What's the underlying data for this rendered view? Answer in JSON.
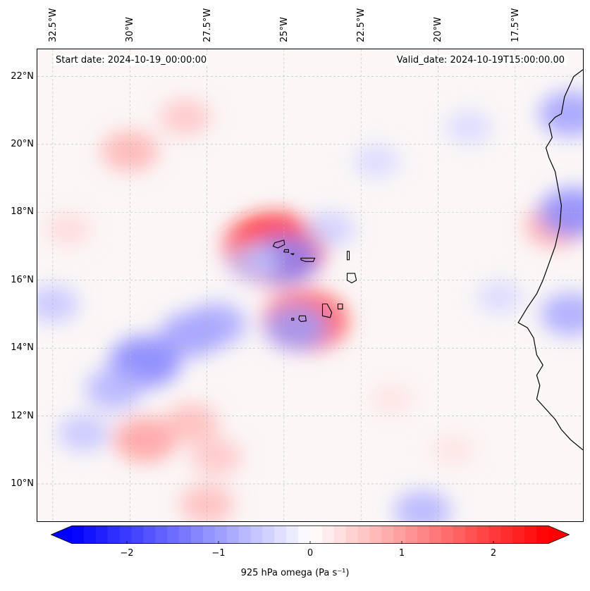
{
  "map": {
    "projection": "lat-lon",
    "lon_range": [
      -33,
      -15.3
    ],
    "lat_range": [
      8.9,
      22.8
    ],
    "lon_ticks": [
      {
        "value": -32.5,
        "label": "32.5°W"
      },
      {
        "value": -30,
        "label": "30°W"
      },
      {
        "value": -27.5,
        "label": "27.5°W"
      },
      {
        "value": -25,
        "label": "25°W"
      },
      {
        "value": -22.5,
        "label": "22.5°W"
      },
      {
        "value": -20,
        "label": "20°W"
      },
      {
        "value": -17.5,
        "label": "17.5°W"
      }
    ],
    "lat_ticks": [
      {
        "value": 22,
        "label": "22°N"
      },
      {
        "value": 20,
        "label": "20°N"
      },
      {
        "value": 18,
        "label": "18°N"
      },
      {
        "value": 16,
        "label": "16°N"
      },
      {
        "value": 14,
        "label": "14°N"
      },
      {
        "value": 12,
        "label": "12°N"
      },
      {
        "value": 10,
        "label": "10°N"
      }
    ],
    "gridlines": true,
    "start_date": "Start date: 2024-10-19_00:00:00",
    "valid_date": "Valid_date: 2024-10-19T15:00:00.00"
  },
  "colorbar": {
    "label": "925 hPa omega (Pa s⁻¹)",
    "vmin": -2.6,
    "vmax": 2.6,
    "extend": "both",
    "ticks": [
      {
        "value": -2,
        "label": "−2"
      },
      {
        "value": -1,
        "label": "−1"
      },
      {
        "value": 0,
        "label": "0"
      },
      {
        "value": 1,
        "label": "1"
      },
      {
        "value": 2,
        "label": "2"
      }
    ],
    "colormap": "bwr",
    "color_low": "#0000ff",
    "color_mid": "#ffffff",
    "color_high": "#ff0000"
  },
  "field_features": [
    {
      "lon": -25.3,
      "lat": 16.9,
      "value": 2.4
    },
    {
      "lon": -25.0,
      "lat": 16.6,
      "value": -1.2
    },
    {
      "lon": -24.3,
      "lat": 14.8,
      "value": 1.8
    },
    {
      "lon": -24.6,
      "lat": 14.6,
      "value": -1.0
    },
    {
      "lon": -29.5,
      "lat": 13.6,
      "value": -1.3
    },
    {
      "lon": -28.0,
      "lat": 14.4,
      "value": -1.0
    },
    {
      "lon": -27.2,
      "lat": 14.7,
      "value": -0.9
    },
    {
      "lon": -30.5,
      "lat": 12.8,
      "value": -0.8
    },
    {
      "lon": -29.5,
      "lat": 11.3,
      "value": 1.0
    },
    {
      "lon": -28.0,
      "lat": 11.8,
      "value": 0.7
    },
    {
      "lon": -27.2,
      "lat": 10.8,
      "value": 0.6
    },
    {
      "lon": -31.5,
      "lat": 11.5,
      "value": -0.6
    },
    {
      "lon": -30.0,
      "lat": 19.8,
      "value": 0.8
    },
    {
      "lon": -28.2,
      "lat": 20.8,
      "value": 0.6
    },
    {
      "lon": -16.2,
      "lat": 17.6,
      "value": 0.9
    },
    {
      "lon": -15.6,
      "lat": 18.0,
      "value": -1.2
    },
    {
      "lon": -15.7,
      "lat": 20.9,
      "value": -1.0
    },
    {
      "lon": -15.7,
      "lat": 15.0,
      "value": -0.9
    },
    {
      "lon": -20.5,
      "lat": 9.2,
      "value": -0.8
    },
    {
      "lon": -27.5,
      "lat": 9.4,
      "value": 0.7
    },
    {
      "lon": -23.5,
      "lat": 17.5,
      "value": -0.5
    },
    {
      "lon": -22.0,
      "lat": 19.5,
      "value": -0.4
    },
    {
      "lon": -19.0,
      "lat": 20.5,
      "value": -0.4
    },
    {
      "lon": -18.0,
      "lat": 15.5,
      "value": -0.4
    },
    {
      "lon": -26.0,
      "lat": 16.5,
      "value": -0.6
    },
    {
      "lon": -32.5,
      "lat": 15.3,
      "value": -0.6
    },
    {
      "lon": -32.0,
      "lat": 17.5,
      "value": 0.4
    },
    {
      "lon": -21.5,
      "lat": 12.5,
      "value": 0.3
    },
    {
      "lon": -19.5,
      "lat": 11.0,
      "value": 0.3
    }
  ],
  "coastlines": [
    {
      "name": "west-africa",
      "points": [
        [
          -15.3,
          22.2
        ],
        [
          -15.6,
          22.0
        ],
        [
          -15.9,
          21.4
        ],
        [
          -16.0,
          20.9
        ],
        [
          -16.2,
          20.8
        ],
        [
          -16.4,
          20.6
        ],
        [
          -16.3,
          20.2
        ],
        [
          -16.5,
          19.9
        ],
        [
          -16.4,
          19.6
        ],
        [
          -16.2,
          19.2
        ],
        [
          -16.1,
          18.7
        ],
        [
          -16.0,
          18.2
        ],
        [
          -16.05,
          17.6
        ],
        [
          -16.2,
          17.0
        ],
        [
          -16.4,
          16.5
        ],
        [
          -16.6,
          16.0
        ],
        [
          -16.8,
          15.6
        ],
        [
          -17.1,
          15.2
        ],
        [
          -17.4,
          14.75
        ],
        [
          -17.1,
          14.6
        ],
        [
          -16.9,
          14.3
        ],
        [
          -16.8,
          13.8
        ],
        [
          -16.6,
          13.5
        ],
        [
          -16.8,
          13.2
        ],
        [
          -16.7,
          12.9
        ],
        [
          -16.8,
          12.5
        ],
        [
          -16.5,
          12.2
        ],
        [
          -16.2,
          11.9
        ],
        [
          -16.0,
          11.6
        ],
        [
          -15.7,
          11.3
        ],
        [
          -15.3,
          11.0
        ]
      ]
    }
  ],
  "islands": [
    {
      "name": "santo-antao",
      "points": [
        [
          -25.3,
          17.1
        ],
        [
          -25.0,
          17.18
        ],
        [
          -24.98,
          17.05
        ],
        [
          -25.2,
          16.95
        ],
        [
          -25.35,
          17.0
        ]
      ]
    },
    {
      "name": "sao-vicente",
      "points": [
        [
          -24.98,
          16.9
        ],
        [
          -24.85,
          16.9
        ],
        [
          -24.85,
          16.82
        ],
        [
          -25.0,
          16.83
        ]
      ]
    },
    {
      "name": "santa-luzia",
      "points": [
        [
          -24.78,
          16.78
        ],
        [
          -24.68,
          16.78
        ],
        [
          -24.7,
          16.75
        ]
      ]
    },
    {
      "name": "sao-nicolau",
      "points": [
        [
          -24.45,
          16.65
        ],
        [
          -24.0,
          16.65
        ],
        [
          -24.05,
          16.55
        ],
        [
          -24.3,
          16.55
        ],
        [
          -24.45,
          16.6
        ]
      ]
    },
    {
      "name": "sal",
      "points": [
        [
          -22.95,
          16.85
        ],
        [
          -22.88,
          16.85
        ],
        [
          -22.88,
          16.6
        ],
        [
          -22.95,
          16.6
        ]
      ]
    },
    {
      "name": "boa-vista",
      "points": [
        [
          -22.95,
          16.2
        ],
        [
          -22.7,
          16.2
        ],
        [
          -22.65,
          16.0
        ],
        [
          -22.8,
          15.92
        ],
        [
          -22.95,
          16.0
        ]
      ]
    },
    {
      "name": "maio",
      "points": [
        [
          -23.25,
          15.3
        ],
        [
          -23.1,
          15.3
        ],
        [
          -23.1,
          15.15
        ],
        [
          -23.25,
          15.15
        ]
      ]
    },
    {
      "name": "santiago",
      "points": [
        [
          -23.75,
          15.3
        ],
        [
          -23.6,
          15.3
        ],
        [
          -23.45,
          15.05
        ],
        [
          -23.5,
          14.9
        ],
        [
          -23.75,
          14.95
        ]
      ]
    },
    {
      "name": "fogo",
      "points": [
        [
          -24.5,
          14.95
        ],
        [
          -24.3,
          14.95
        ],
        [
          -24.28,
          14.8
        ],
        [
          -24.45,
          14.78
        ],
        [
          -24.52,
          14.85
        ]
      ]
    },
    {
      "name": "brava",
      "points": [
        [
          -24.75,
          14.88
        ],
        [
          -24.68,
          14.88
        ],
        [
          -24.68,
          14.82
        ],
        [
          -24.75,
          14.82
        ]
      ]
    }
  ]
}
